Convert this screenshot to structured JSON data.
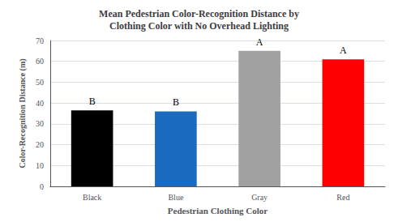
{
  "chart_data": {
    "type": "bar",
    "title": "Mean Pedestrian Color-Recognition Distance by\nClothing Color with No Overhead Lighting",
    "xlabel": "Pedestrian Clothing Color",
    "ylabel": "Color-Recognition Distance (m)",
    "categories": [
      "Black",
      "Blue",
      "Gray",
      "Red"
    ],
    "values": [
      36.5,
      36.0,
      65.0,
      61.0
    ],
    "colors": [
      "#000000",
      "#1a6abf",
      "#a0a0a0",
      "#ff0000"
    ],
    "annotations": [
      "B",
      "B",
      "A",
      "A"
    ],
    "ylim": [
      0,
      70
    ],
    "yticks": [
      0,
      10,
      20,
      30,
      40,
      50,
      60,
      70
    ],
    "grid": true
  }
}
